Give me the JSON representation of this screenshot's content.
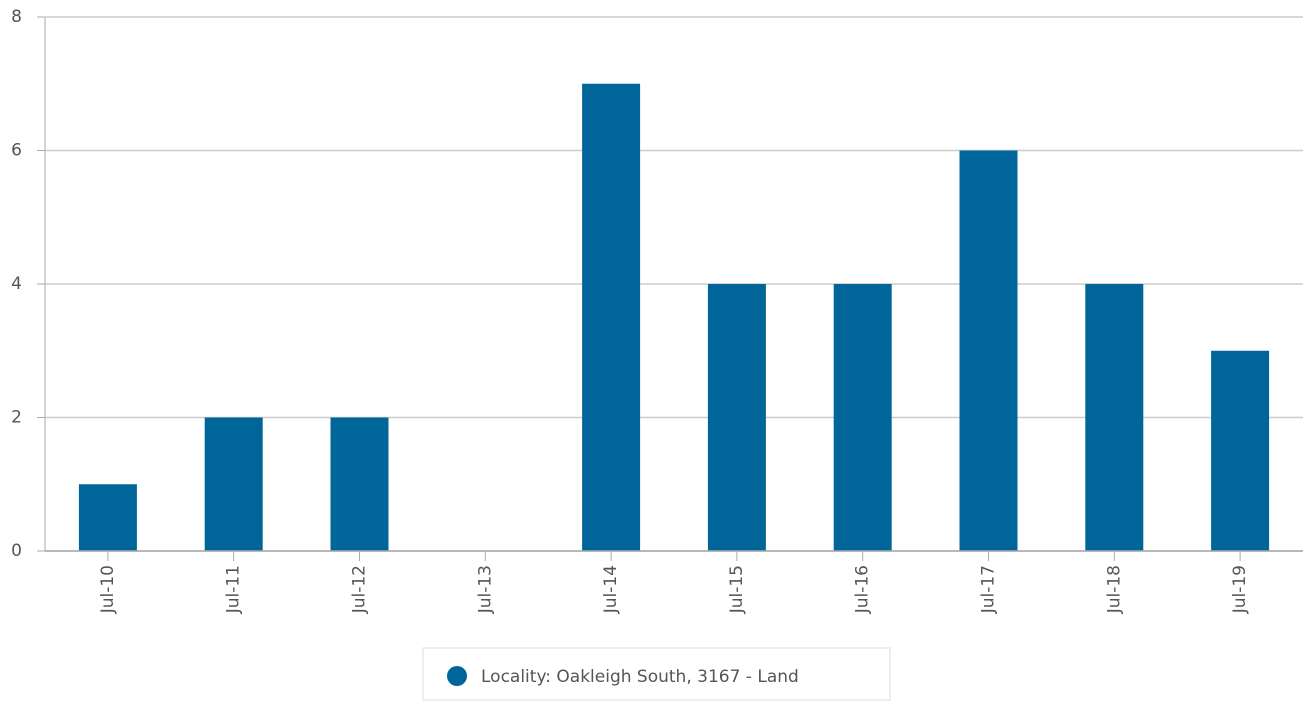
{
  "chart_data": {
    "type": "bar",
    "categories": [
      "Jul-10",
      "Jul-11",
      "Jul-12",
      "Jul-13",
      "Jul-14",
      "Jul-15",
      "Jul-16",
      "Jul-17",
      "Jul-18",
      "Jul-19"
    ],
    "series": [
      {
        "name": "Locality: Oakleigh South, 3167 - Land",
        "color": "#006699",
        "values": [
          1,
          2,
          2,
          0,
          7,
          4,
          4,
          6,
          4,
          3
        ]
      }
    ],
    "ylim": [
      0,
      8
    ],
    "yticks": [
      0,
      2,
      4,
      6,
      8
    ],
    "grid": true,
    "legend": "bottom"
  }
}
